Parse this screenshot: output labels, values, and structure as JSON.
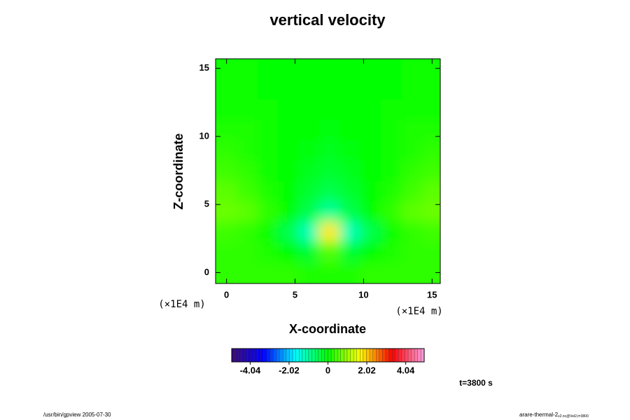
{
  "chart_data": {
    "type": "heatmap",
    "title": "vertical velocity",
    "xlabel": "X-coordinate",
    "ylabel": "Z-coordinate",
    "xunit": "(×1E4 m)",
    "yunit": "(×1E4 m)",
    "x": [
      0,
      1.5,
      3,
      4.5,
      6,
      7.5,
      9,
      10.5,
      12,
      13.5,
      15
    ],
    "y": [
      0,
      1.5,
      3,
      4.5,
      6,
      7.5,
      9,
      10.5,
      12,
      13.5,
      15
    ],
    "z": [
      [
        0.3,
        0.3,
        0.3,
        0.3,
        0.2,
        0.2,
        0.2,
        0.3,
        0.3,
        0.3,
        0.3
      ],
      [
        0.3,
        0.3,
        0.2,
        0,
        -0.3,
        0.5,
        -0.3,
        0,
        0.2,
        0.3,
        0.3
      ],
      [
        0.4,
        0.3,
        0.1,
        -0.5,
        -1.2,
        1.8,
        -1.2,
        -0.5,
        0.1,
        0.3,
        0.4
      ],
      [
        0.7,
        0.6,
        0.3,
        0,
        -0.5,
        -1,
        -0.5,
        0,
        0.3,
        0.6,
        0.7
      ],
      [
        0.6,
        0.4,
        0.2,
        0,
        -0.3,
        -0.5,
        -0.3,
        0,
        0.2,
        0.4,
        0.6
      ],
      [
        0.4,
        0.3,
        0.1,
        0,
        -0.2,
        -0.3,
        -0.2,
        0,
        0.1,
        0.3,
        0.4
      ],
      [
        0.3,
        0.2,
        0.1,
        0,
        -0.1,
        -0.2,
        -0.1,
        0,
        0.1,
        0.2,
        0.3
      ],
      [
        0.2,
        0.2,
        0.1,
        0,
        0,
        -0.1,
        0,
        0,
        0.1,
        0.2,
        0.2
      ],
      [
        0.1,
        0.1,
        0.1,
        0,
        0,
        0,
        0,
        0,
        0.1,
        0.1,
        0.1
      ],
      [
        0.1,
        0.1,
        0,
        0,
        0,
        0,
        0,
        0,
        0,
        0.1,
        0.1
      ],
      [
        0.1,
        0.1,
        0,
        0,
        0,
        0,
        0,
        0,
        0,
        0.1,
        0.1
      ]
    ],
    "xlim": [
      -0.8,
      15.6
    ],
    "ylim": [
      -0.8,
      15.7
    ],
    "xticks": [
      0,
      5,
      10,
      15
    ],
    "yticks": [
      0,
      5,
      10,
      15
    ],
    "clim": [
      -5,
      5
    ],
    "cticks": [
      -4.04,
      -2.02,
      0,
      2.02,
      4.04
    ],
    "colormap": [
      "#3c0a78",
      "#0000ff",
      "#00ffff",
      "#00ff00",
      "#ffff00",
      "#ff0000",
      "#ffa0e0"
    ],
    "time_label": "t=3800 s",
    "footer_left": "/usr/bin/gpview 2005-07-30",
    "footer_right": "arare-thermal-2",
    "footer_right_sub": "v2.nc@Vel2,t=3800"
  }
}
